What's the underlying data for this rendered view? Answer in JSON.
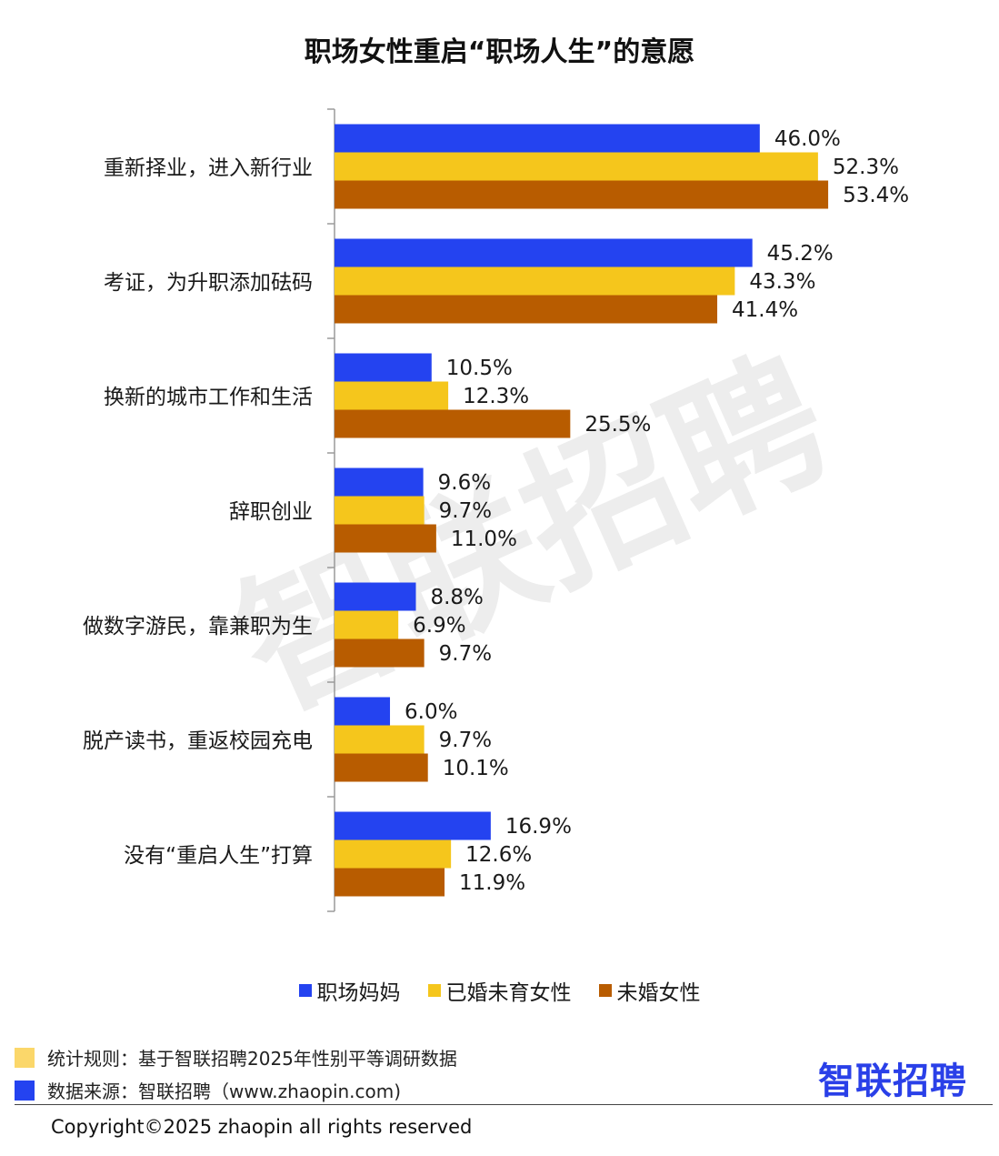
{
  "title": "职场女性重启“职场人生”的意愿",
  "watermark": "智联招聘",
  "chart_data": {
    "type": "bar",
    "orientation": "horizontal",
    "title": "职场女性重启“职场人生”的意愿",
    "categories": [
      "重新择业，进入新行业",
      "考证，为升职添加砝码",
      "换新的城市工作和生活",
      "辞职创业",
      "做数字游民，靠兼职为生",
      "脱产读书，重返校园充电",
      "没有“重启人生”打算"
    ],
    "series": [
      {
        "name": "职场妈妈",
        "color": "#2443f0",
        "values": [
          46.0,
          45.2,
          10.5,
          9.6,
          8.8,
          6.0,
          16.9
        ]
      },
      {
        "name": "已婚未育女性",
        "color": "#f5c61c",
        "values": [
          52.3,
          43.3,
          12.3,
          9.7,
          6.9,
          9.7,
          12.6
        ]
      },
      {
        "name": "未婚女性",
        "color": "#b85c00",
        "values": [
          53.4,
          41.4,
          25.5,
          11.0,
          9.7,
          10.1,
          11.9
        ]
      }
    ],
    "value_suffix": "%",
    "legend_position": "bottom",
    "grid": false
  },
  "footer": {
    "rule_label": "统计规则：基于智联招聘2025年性别平等调研数据",
    "rule_color": "#fbd76a",
    "source_label": "数据来源：智联招聘（www.zhaopin.com)",
    "source_color": "#2443f0",
    "logo_text": "智联招聘",
    "copyright": "Copyright©2025 zhaopin all rights reserved"
  }
}
